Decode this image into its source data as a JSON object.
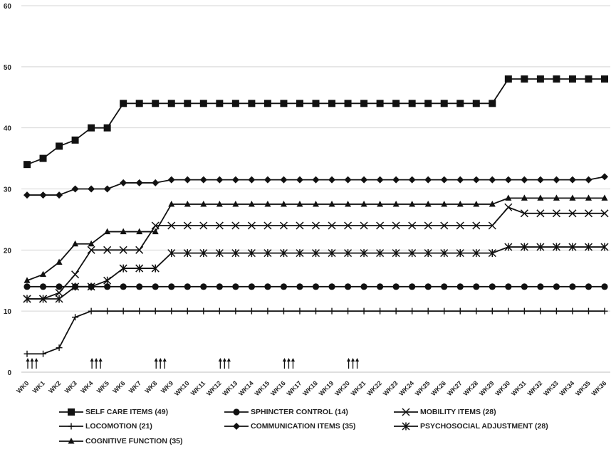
{
  "chart_data": {
    "type": "line",
    "title": "",
    "xlabel": "",
    "ylabel": "",
    "ylim": [
      0,
      60
    ],
    "yticks": [
      0,
      10,
      20,
      30,
      40,
      50,
      60
    ],
    "grid": "horizontal",
    "legend_position": "bottom",
    "categories": [
      "WK0",
      "WK1",
      "WK2",
      "WK3",
      "WK4",
      "WK5",
      "WK6",
      "WK7",
      "WK8",
      "WK9",
      "WK10",
      "WK11",
      "WK12",
      "WK13",
      "WK14",
      "WK15",
      "WK16",
      "WK17",
      "WK18",
      "WK19",
      "WK20",
      "WK21",
      "WK22",
      "WK23",
      "WK24",
      "WK25",
      "WK26",
      "WK27",
      "WK28",
      "WK29",
      "WK30",
      "WK31",
      "WK32",
      "WK33",
      "WK34",
      "WK35",
      "WK36"
    ],
    "series": [
      {
        "name": "SELF CARE ITEMS (49)",
        "marker": "square",
        "values": [
          34,
          35,
          37,
          38,
          40,
          40,
          44,
          44,
          44,
          44,
          44,
          44,
          44,
          44,
          44,
          44,
          44,
          44,
          44,
          44,
          44,
          44,
          44,
          44,
          44,
          44,
          44,
          44,
          44,
          44,
          48,
          48,
          48,
          48,
          48,
          48,
          48
        ]
      },
      {
        "name": "SPHINCTER CONTROL (14)",
        "marker": "circle",
        "values": [
          14,
          14,
          14,
          14,
          14,
          14,
          14,
          14,
          14,
          14,
          14,
          14,
          14,
          14,
          14,
          14,
          14,
          14,
          14,
          14,
          14,
          14,
          14,
          14,
          14,
          14,
          14,
          14,
          14,
          14,
          14,
          14,
          14,
          14,
          14,
          14,
          14
        ]
      },
      {
        "name": "MOBILITY ITEMS (28)",
        "marker": "x",
        "values": [
          12,
          12,
          13,
          16,
          20,
          20,
          20,
          20,
          24,
          24,
          24,
          24,
          24,
          24,
          24,
          24,
          24,
          24,
          24,
          24,
          24,
          24,
          24,
          24,
          24,
          24,
          24,
          24,
          24,
          24,
          27,
          26,
          26,
          26,
          26,
          26,
          26
        ]
      },
      {
        "name": "LOCOMOTION (21)",
        "marker": "plus",
        "values": [
          3,
          3,
          4,
          9,
          10,
          10,
          10,
          10,
          10,
          10,
          10,
          10,
          10,
          10,
          10,
          10,
          10,
          10,
          10,
          10,
          10,
          10,
          10,
          10,
          10,
          10,
          10,
          10,
          10,
          10,
          10,
          10,
          10,
          10,
          10,
          10,
          10
        ]
      },
      {
        "name": "COMMUNICATION ITEMS (35)",
        "marker": "diamond",
        "values": [
          29,
          29,
          29,
          30,
          30,
          30,
          31,
          31,
          31,
          31.5,
          31.5,
          31.5,
          31.5,
          31.5,
          31.5,
          31.5,
          31.5,
          31.5,
          31.5,
          31.5,
          31.5,
          31.5,
          31.5,
          31.5,
          31.5,
          31.5,
          31.5,
          31.5,
          31.5,
          31.5,
          31.5,
          31.5,
          31.5,
          31.5,
          31.5,
          31.5,
          32
        ]
      },
      {
        "name": "PSYCHOSOCIAL ADJUSTMENT (28)",
        "marker": "asterisk",
        "values": [
          12,
          12,
          12,
          14,
          14,
          15,
          17,
          17,
          17,
          19.5,
          19.5,
          19.5,
          19.5,
          19.5,
          19.5,
          19.5,
          19.5,
          19.5,
          19.5,
          19.5,
          19.5,
          19.5,
          19.5,
          19.5,
          19.5,
          19.5,
          19.5,
          19.5,
          19.5,
          19.5,
          20.5,
          20.5,
          20.5,
          20.5,
          20.5,
          20.5,
          20.5
        ]
      },
      {
        "name": "COGNITIVE FUNCTION (35)",
        "marker": "triangle",
        "values": [
          15,
          16,
          18,
          21,
          21,
          23,
          23,
          23,
          23,
          27.5,
          27.5,
          27.5,
          27.5,
          27.5,
          27.5,
          27.5,
          27.5,
          27.5,
          27.5,
          27.5,
          27.5,
          27.5,
          27.5,
          27.5,
          27.5,
          27.5,
          27.5,
          27.5,
          27.5,
          27.5,
          28.5,
          28.5,
          28.5,
          28.5,
          28.5,
          28.5,
          28.5
        ]
      }
    ],
    "annotations": {
      "arrow_groups_at_weeks": [
        "WK0",
        "WK4",
        "WK8",
        "WK12",
        "WK16",
        "WK20"
      ],
      "arrows_per_group": 3
    }
  }
}
